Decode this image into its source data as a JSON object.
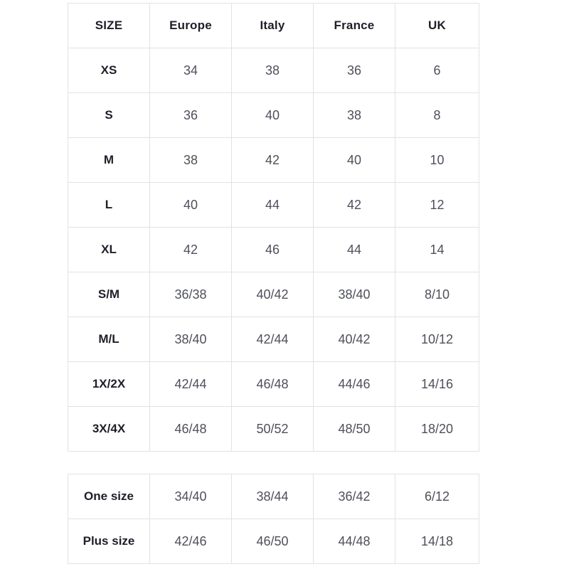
{
  "page": {
    "background": "#ffffff"
  },
  "colors": {
    "border": "#e2e2e5",
    "header_text": "#1e1f29",
    "cell_text": "#4e505a"
  },
  "main_table": {
    "headers": [
      "SIZE",
      "Europe",
      "Italy",
      "France",
      "UK"
    ],
    "rows": [
      {
        "label": "XS",
        "values": [
          "34",
          "38",
          "36",
          "6"
        ]
      },
      {
        "label": "S",
        "values": [
          "36",
          "40",
          "38",
          "8"
        ]
      },
      {
        "label": "M",
        "values": [
          "38",
          "42",
          "40",
          "10"
        ]
      },
      {
        "label": "L",
        "values": [
          "40",
          "44",
          "42",
          "12"
        ]
      },
      {
        "label": "XL",
        "values": [
          "42",
          "46",
          "44",
          "14"
        ]
      },
      {
        "label": "S/M",
        "values": [
          "36/38",
          "40/42",
          "38/40",
          "8/10"
        ]
      },
      {
        "label": "M/L",
        "values": [
          "38/40",
          "42/44",
          "40/42",
          "10/12"
        ]
      },
      {
        "label": "1X/2X",
        "values": [
          "42/44",
          "46/48",
          "44/46",
          "14/16"
        ]
      },
      {
        "label": "3X/4X",
        "values": [
          "46/48",
          "50/52",
          "48/50",
          "18/20"
        ]
      }
    ]
  },
  "secondary_table": {
    "rows": [
      {
        "label": "One size",
        "values": [
          "34/40",
          "38/44",
          "36/42",
          "6/12"
        ]
      },
      {
        "label": "Plus size",
        "values": [
          "42/46",
          "46/50",
          "44/48",
          "14/18"
        ]
      }
    ]
  }
}
